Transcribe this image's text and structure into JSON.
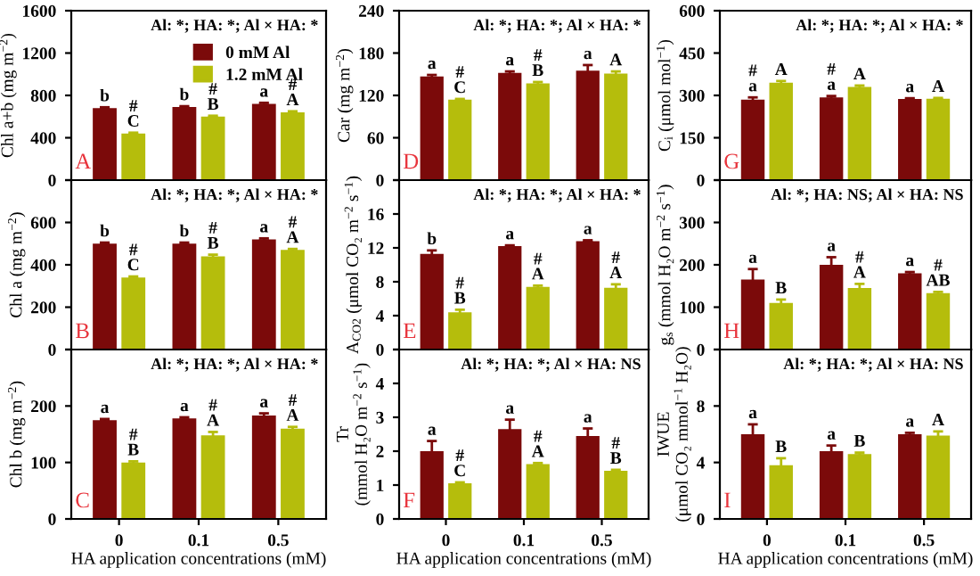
{
  "chart_data": [
    {
      "type": "bar",
      "ylabel": "Chl a+b (mg m$^{−2}$)",
      "categories": [
        "0",
        "0.1",
        "0.5"
      ],
      "ylim": [
        0,
        1600
      ],
      "yticks": [
        0,
        400,
        800,
        1200,
        1600
      ],
      "tick_labels": "y",
      "legend": "top right",
      "series": [
        {
          "name": "0 mM Al",
          "color": "#7b0a0a",
          "values": [
            680,
            690,
            720
          ],
          "errors": [
            8,
            8,
            10
          ],
          "value_labels": [
            "b",
            "b",
            "a"
          ]
        },
        {
          "name": "1.2 mM Al",
          "color": "#b5bd0c",
          "values": [
            440,
            600,
            640
          ],
          "errors": [
            8,
            8,
            10
          ],
          "value_labels": [
            "#\nC",
            "#\nB",
            "#\nA"
          ]
        }
      ],
      "annotations": [
        "Al: *; HA: *; Al × HA: *",
        "A"
      ]
    },
    {
      "type": "bar",
      "ylabel": "Car (mg m$^{−2}$)",
      "categories": [
        "0",
        "0.1",
        "0.5"
      ],
      "ylim": [
        0,
        240
      ],
      "yticks": [
        0,
        60,
        120,
        180,
        240
      ],
      "tick_labels": "y",
      "series": [
        {
          "color": "#7b0a0a",
          "values": [
            147,
            152,
            155
          ],
          "errors": [
            2,
            2,
            8
          ],
          "value_labels": [
            "a",
            "a",
            "a"
          ]
        },
        {
          "color": "#b5bd0c",
          "values": [
            114,
            137,
            151
          ],
          "errors": [
            1,
            2,
            3
          ],
          "value_labels": [
            "#\nC",
            "#\nB",
            "A"
          ]
        }
      ],
      "annotations": [
        "Al: *; HA: *; Al × HA: *",
        "D"
      ]
    },
    {
      "type": "bar",
      "ylabel": "C$_{i}$ (μmol mol$^{−1}$)",
      "categories": [
        "0",
        "0.1",
        "0.5"
      ],
      "ylim": [
        0,
        600
      ],
      "yticks": [
        0,
        150,
        300,
        450,
        600
      ],
      "tick_labels": "y",
      "series": [
        {
          "color": "#7b0a0a",
          "values": [
            285,
            293,
            287
          ],
          "errors": [
            8,
            5,
            3
          ],
          "value_labels": [
            "#\na",
            "#\na",
            "a"
          ]
        },
        {
          "color": "#b5bd0c",
          "values": [
            345,
            330,
            288
          ],
          "errors": [
            6,
            5,
            3
          ],
          "value_labels": [
            "A",
            "A",
            "A"
          ]
        }
      ],
      "annotations": [
        "Al: *; HA: *; Al × HA: *",
        "G"
      ]
    },
    {
      "type": "bar",
      "ylabel": "Chl a (mg m$^{−2}$)",
      "categories": [
        "0",
        "0.1",
        "0.5"
      ],
      "ylim": [
        0,
        800
      ],
      "yticks": [
        0,
        200,
        400,
        600,
        {
          "value": 800,
          "label": null
        }
      ],
      "tick_labels": "y",
      "series": [
        {
          "color": "#7b0a0a",
          "values": [
            500,
            500,
            520
          ],
          "errors": [
            5,
            5,
            5
          ],
          "value_labels": [
            "b",
            "b",
            "a"
          ]
        },
        {
          "color": "#b5bd0c",
          "values": [
            340,
            440,
            470
          ],
          "errors": [
            5,
            8,
            5
          ],
          "value_labels": [
            "#\nC",
            "#\nB",
            "#\nA"
          ]
        }
      ],
      "annotations": [
        "Al: *; HA: *; Al × HA: *",
        "B"
      ]
    },
    {
      "type": "bar",
      "ylabel": "A$_{CO2}$ (μmol CO₂ m$^{−2}$ s$^{−1}$)",
      "categories": [
        "0",
        "0.1",
        "0.5"
      ],
      "ylim": [
        0,
        20
      ],
      "yticks": [
        0,
        4,
        8,
        12,
        16,
        {
          "value": 20,
          "label": null
        }
      ],
      "tick_labels": "y",
      "series": [
        {
          "color": "#7b0a0a",
          "values": [
            11.3,
            12.2,
            12.8
          ],
          "errors": [
            0.4,
            0.1,
            0.1
          ],
          "value_labels": [
            "b",
            "a",
            "a"
          ]
        },
        {
          "color": "#b5bd0c",
          "values": [
            4.4,
            7.4,
            7.3
          ],
          "errors": [
            0.3,
            0.15,
            0.4
          ],
          "value_labels": [
            "#\nB",
            "#\nA",
            "#\nA"
          ]
        }
      ],
      "annotations": [
        "Al: *; HA: *; Al × HA: *",
        "E"
      ]
    },
    {
      "type": "bar",
      "ylabel": "g$_{s}$ (mmol H₂O m$^{−2}$ s$^{−1}$)",
      "categories": [
        "0",
        "0.1",
        "0.5"
      ],
      "ylim": [
        0,
        400
      ],
      "yticks": [
        0,
        100,
        200,
        300,
        {
          "value": 400,
          "label": null
        }
      ],
      "tick_labels": "y",
      "series": [
        {
          "color": "#7b0a0a",
          "values": [
            165,
            200,
            180
          ],
          "errors": [
            25,
            18,
            3
          ],
          "value_labels": [
            "a",
            "a",
            "a"
          ]
        },
        {
          "color": "#b5bd0c",
          "values": [
            110,
            145,
            133
          ],
          "errors": [
            8,
            10,
            3
          ],
          "value_labels": [
            "B",
            "#\nA",
            "#\nAB"
          ]
        }
      ],
      "annotations": [
        "Al: *; HA: NS; Al × HA: NS",
        "H"
      ]
    },
    {
      "type": "bar",
      "ylabel": "Chl b (mg m$^{−2}$)",
      "xlabel": "HA application concentrations (mM)",
      "categories": [
        "0",
        "0.1",
        "0.5"
      ],
      "ylim": [
        0,
        300
      ],
      "yticks": [
        0,
        100,
        200,
        {
          "value": 300,
          "label": null
        }
      ],
      "series": [
        {
          "color": "#7b0a0a",
          "values": [
            175,
            178,
            183
          ],
          "errors": [
            2,
            2,
            4
          ],
          "value_labels": [
            "a",
            "a",
            "a"
          ]
        },
        {
          "color": "#b5bd0c",
          "values": [
            100,
            148,
            160
          ],
          "errors": [
            2,
            6,
            3
          ],
          "value_labels": [
            "#\nB",
            "#\nA",
            "#\nA"
          ]
        }
      ],
      "annotations": [
        "Al: *; HA: *; Al × HA: *",
        "C"
      ]
    },
    {
      "type": "bar",
      "ylabel": "Tr\n(mmol H₂O m$^{−2}$ s$^{−1}$)",
      "xlabel": "HA application concentrations (mM)",
      "categories": [
        "0",
        "0.1",
        "0.5"
      ],
      "ylim": [
        0,
        5
      ],
      "yticks": [
        0,
        1,
        2,
        3,
        4,
        {
          "value": 5,
          "label": null
        }
      ],
      "series": [
        {
          "color": "#7b0a0a",
          "values": [
            2.0,
            2.65,
            2.45
          ],
          "errors": [
            0.3,
            0.28,
            0.22
          ],
          "value_labels": [
            "a",
            "a",
            "a"
          ]
        },
        {
          "color": "#b5bd0c",
          "values": [
            1.05,
            1.62,
            1.42
          ],
          "errors": [
            0.03,
            0.03,
            0.03
          ],
          "value_labels": [
            "#\nC",
            "#\nA",
            "#\nB"
          ]
        }
      ],
      "annotations": [
        "Al: *; HA: *; Al × HA: NS",
        "F"
      ]
    },
    {
      "type": "bar",
      "ylabel": "IWUE\n(μmol CO₂ mmol$^{−1}$ H₂O)",
      "xlabel": "HA application concentrations (mM)",
      "categories": [
        "0",
        "0.1",
        "0.5"
      ],
      "ylim": [
        0,
        12
      ],
      "yticks": [
        0,
        4,
        8,
        {
          "value": 12,
          "label": null
        }
      ],
      "series": [
        {
          "color": "#7b0a0a",
          "values": [
            6.0,
            4.8,
            6.0
          ],
          "errors": [
            0.7,
            0.4,
            0.1
          ],
          "value_labels": [
            "a",
            "a",
            "a"
          ]
        },
        {
          "color": "#b5bd0c",
          "values": [
            3.8,
            4.6,
            5.9
          ],
          "errors": [
            0.5,
            0.1,
            0.3
          ],
          "value_labels": [
            "B",
            "B",
            "A"
          ]
        }
      ],
      "annotations": [
        "Al: *; HA: *; Al × HA: NS",
        "I"
      ]
    }
  ]
}
